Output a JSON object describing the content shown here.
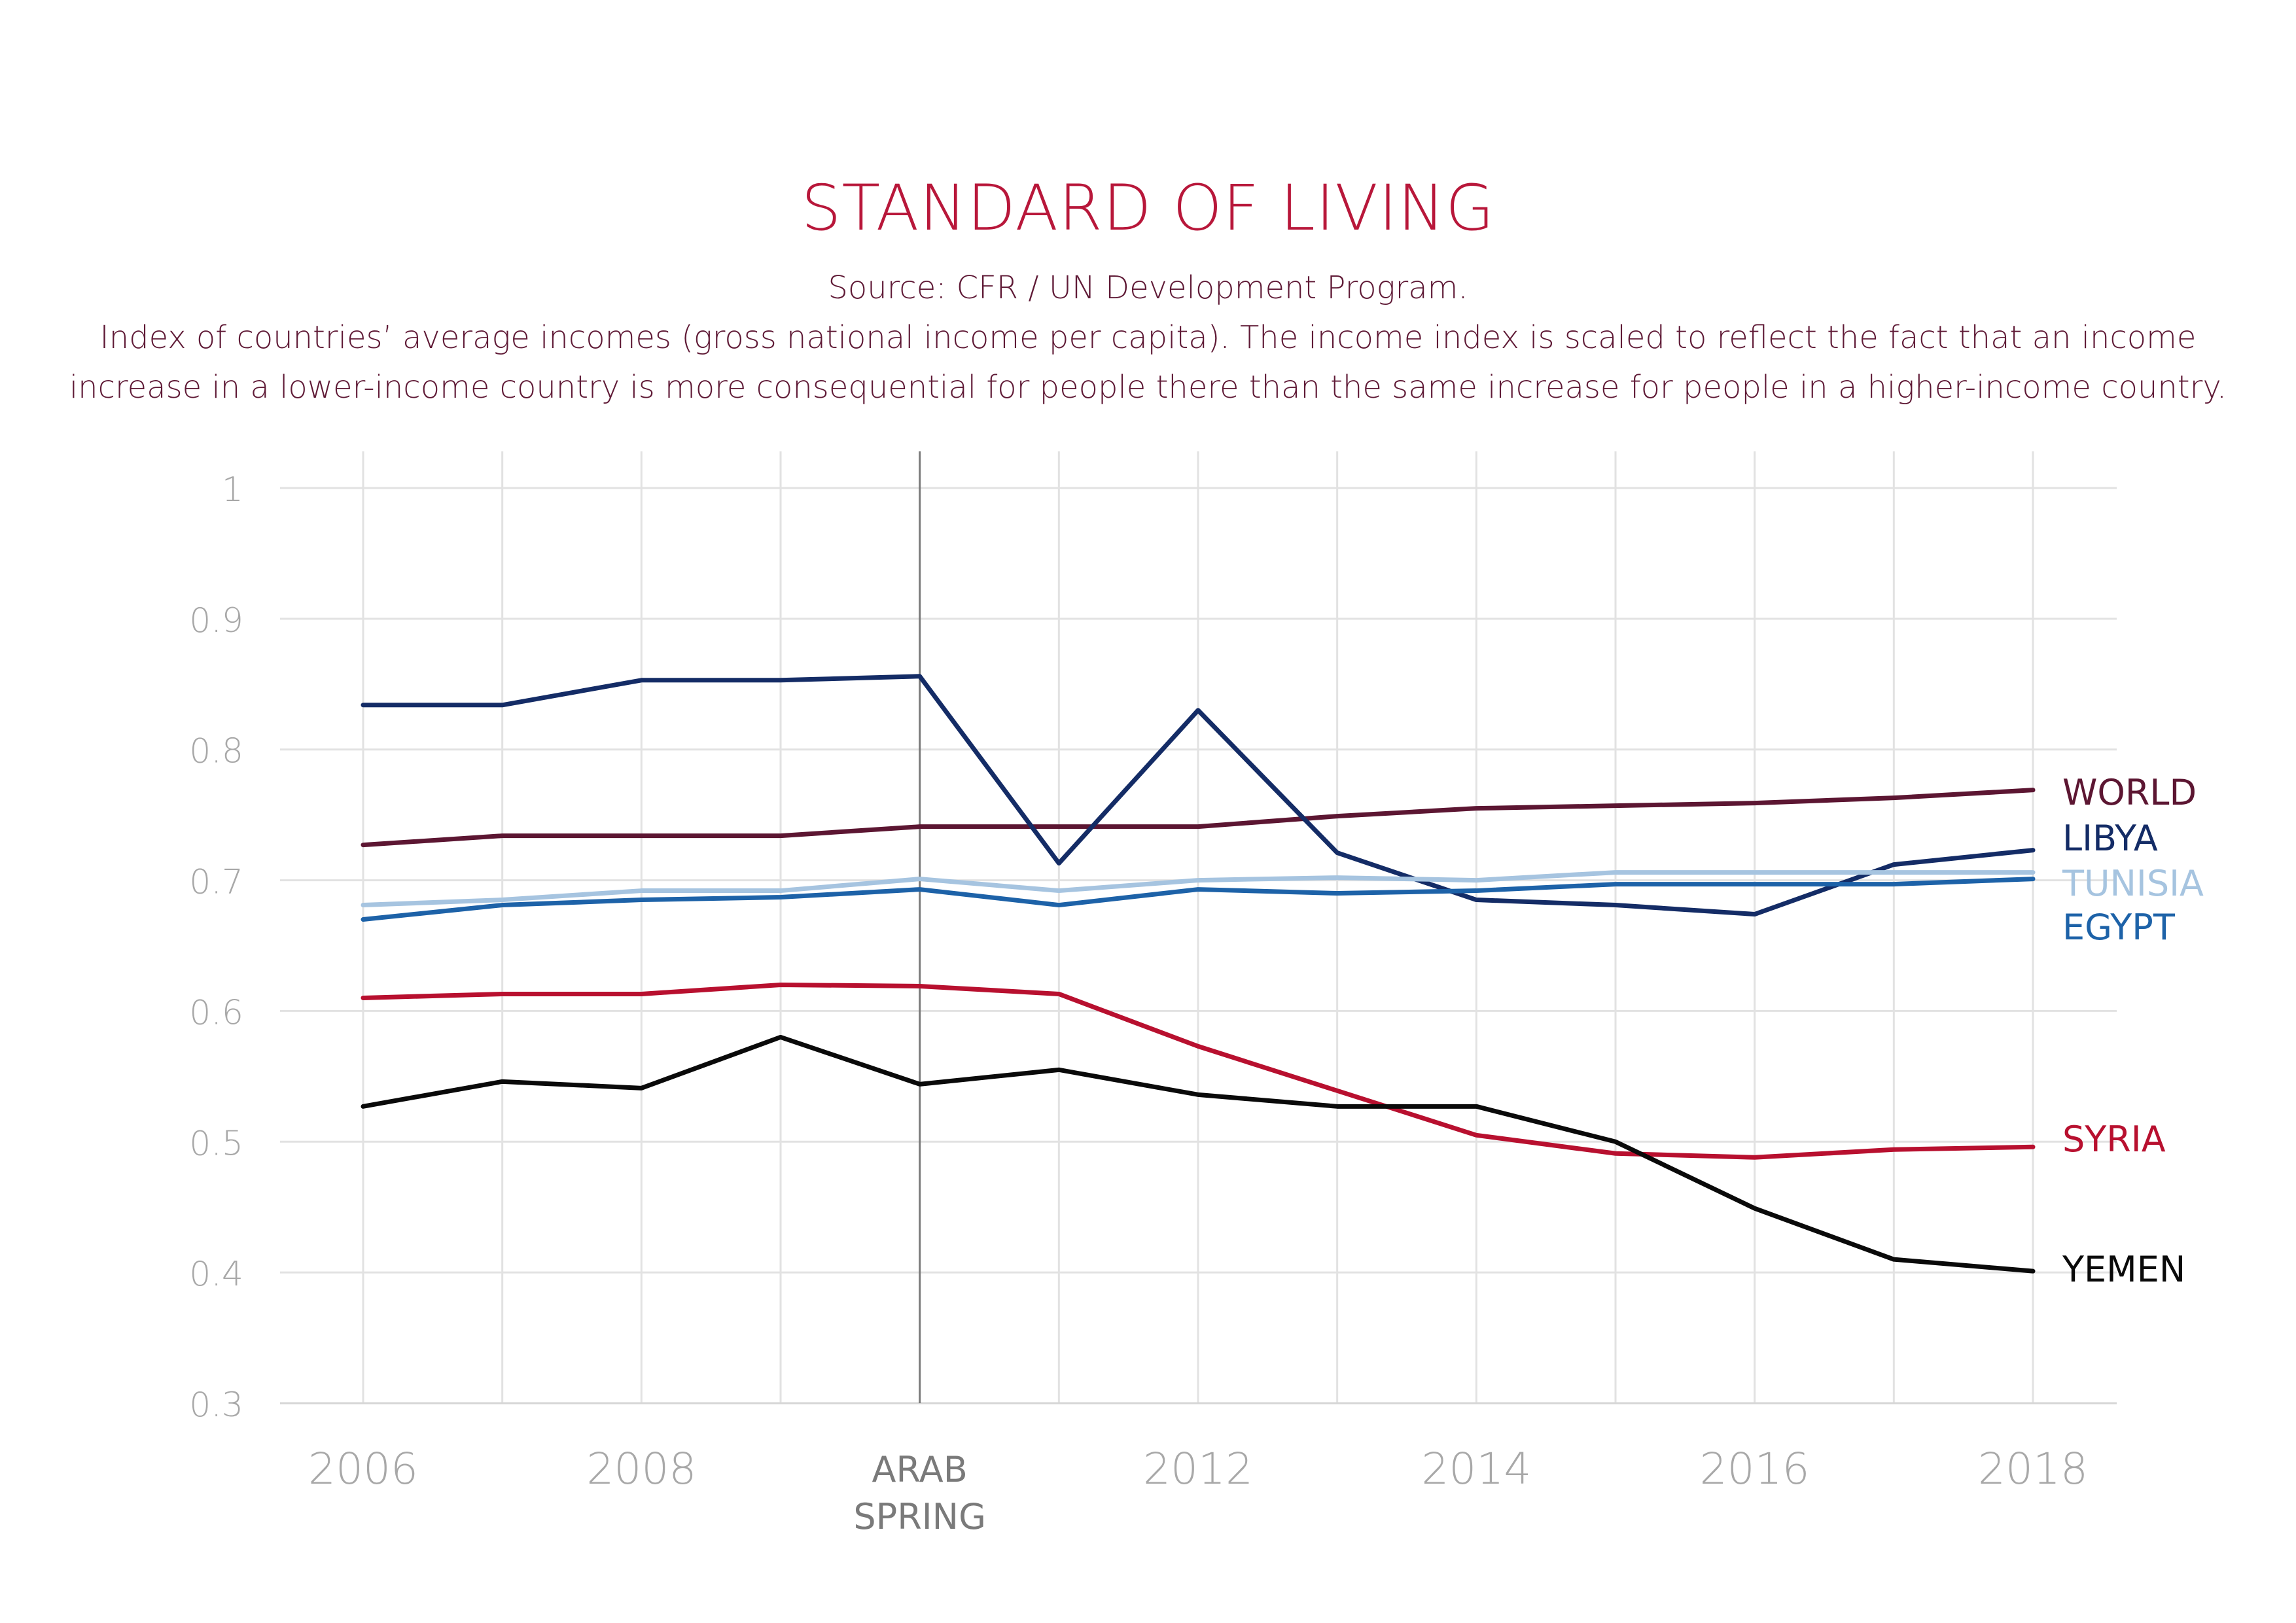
{
  "chart_data": {
    "type": "line",
    "title": "STANDARD OF LIVING",
    "source": "Source: CFR / UN Development Program.",
    "description": [
      "Index of countries’ average incomes (gross national income per capita). The income index is scaled to reflect the fact that an income",
      "increase in a lower-income country is more consequential for people there than the same increase for people in a higher-income country."
    ],
    "x": [
      2006,
      2007,
      2008,
      2009,
      2010,
      2011,
      2012,
      2013,
      2014,
      2015,
      2016,
      2017,
      2018
    ],
    "x_ticks": [
      2006,
      2008,
      2012,
      2014,
      2016,
      2018
    ],
    "x_tick_labels": [
      "2006",
      "2008",
      "2012",
      "2014",
      "2016",
      "2018"
    ],
    "xlim": [
      2006,
      2018
    ],
    "y_ticks": [
      0.3,
      0.4,
      0.5,
      0.6,
      0.7,
      0.8,
      0.9,
      1
    ],
    "y_tick_labels": [
      "0.3",
      "0.4",
      "0.5",
      "0.6",
      "0.7",
      "0.8",
      "0.9",
      "1"
    ],
    "ylim": [
      0.3,
      1
    ],
    "grid": true,
    "annotation": {
      "x": 2010,
      "label_lines": [
        "ARAB",
        "SPRING"
      ],
      "color": "#7a7a7a"
    },
    "series": [
      {
        "name": "WORLD",
        "color": "#5c1632",
        "values": [
          0.727,
          0.734,
          0.734,
          0.734,
          0.741,
          0.741,
          0.741,
          0.749,
          0.755,
          0.757,
          0.759,
          0.763,
          0.769
        ]
      },
      {
        "name": "LIBYA",
        "color": "#142c66",
        "values": [
          0.834,
          0.834,
          0.853,
          0.853,
          0.856,
          0.713,
          0.83,
          0.721,
          0.685,
          0.681,
          0.674,
          0.712,
          0.723
        ]
      },
      {
        "name": "TUNISIA",
        "color": "#a6c4e0",
        "values": [
          0.681,
          0.685,
          0.692,
          0.692,
          0.701,
          0.692,
          0.7,
          0.702,
          0.7,
          0.706,
          0.706,
          0.706,
          0.706
        ]
      },
      {
        "name": "EGYPT",
        "color": "#1d62a8",
        "values": [
          0.67,
          0.681,
          0.685,
          0.687,
          0.693,
          0.681,
          0.693,
          0.69,
          0.692,
          0.697,
          0.697,
          0.697,
          0.701
        ]
      },
      {
        "name": "SYRIA",
        "color": "#b8102f",
        "values": [
          0.61,
          0.613,
          0.613,
          0.62,
          0.619,
          0.613,
          0.573,
          0.539,
          0.505,
          0.491,
          0.488,
          0.494,
          0.496
        ]
      },
      {
        "name": "YEMEN",
        "color": "#0a0a0a",
        "values": [
          0.527,
          0.546,
          0.541,
          0.58,
          0.544,
          0.555,
          0.536,
          0.527,
          0.527,
          0.5,
          0.449,
          0.41,
          0.401
        ]
      }
    ],
    "colors": {
      "title": "#b8173a",
      "text": "#5f1a36",
      "axis_label": "#a8a8a8",
      "grid": "#e2e2e2"
    }
  }
}
